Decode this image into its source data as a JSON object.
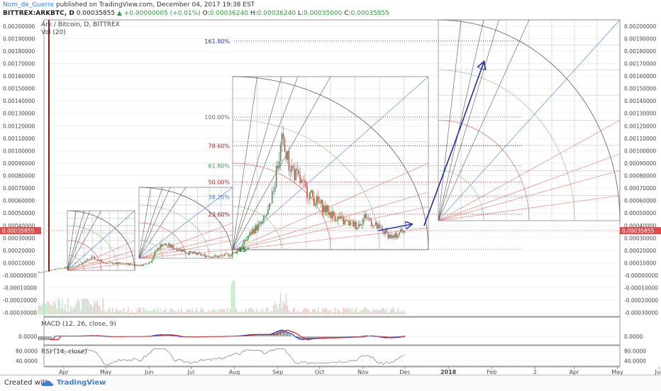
{
  "header": {
    "author": "Nom_de_Guerre",
    "published": "published on TradingView.com, December 04, 2017 19:38 EST",
    "symbol": "BITTREX:ARKBTC, D",
    "last": "0.00035855",
    "change": "+0.00000005 (+0.01%)",
    "o_label": "O:",
    "o": "0.00036240",
    "h_label": "H:",
    "h": "0.00036240",
    "l_label": "L:",
    "l": "0.00035000",
    "c_label": "C:",
    "c": "0.00035855"
  },
  "panes": {
    "main_title": "Ark / Bitcoin, D, BITTREX",
    "vol_title": "Vol (20)",
    "macd_title": "MACD (12, 26, close, 9)",
    "rsi_title": "RSI (14, close)"
  },
  "footer": {
    "created_with": "Created with",
    "brand": "TradingView"
  },
  "colors": {
    "up": "#3c9a4b",
    "down": "#e04a4a",
    "arrow": "#1e2aa8",
    "macd": "#2040d0",
    "signal": "#d02020"
  },
  "chart_data": {
    "type": "candlestick",
    "price_axis_labels": [
      "0.00200000",
      "0.00190000",
      "0.00180000",
      "0.00170000",
      "0.00160000",
      "0.00150000",
      "0.00140000",
      "0.00130000",
      "0.00120000",
      "0.00110000",
      "0.00100000",
      "0.00090000",
      "0.00080000",
      "0.00070000",
      "0.00060000",
      "0.00050000",
      "0.00040000",
      "0.00030000",
      "0.00020000",
      "0.00010000",
      "-0.00000000",
      "-0.00010000",
      "-0.00020000",
      "-0.00030000"
    ],
    "price_axis_values": [
      0.002,
      0.0019,
      0.0018,
      0.0017,
      0.0016,
      0.0015,
      0.0014,
      0.0013,
      0.0012,
      0.0011,
      0.001,
      0.0009,
      0.0008,
      0.0007,
      0.0006,
      0.0005,
      0.0004,
      0.0003,
      0.0002,
      0.0001,
      0,
      -0.0001,
      -0.0002,
      -0.0003
    ],
    "current_price_label": "0.00035855",
    "current_price": 0.00035855,
    "macd_axis_label": "0.0000",
    "rsi_axis_labels": [
      "80.0000",
      "40.0000"
    ],
    "rsi_axis_values": [
      80,
      40
    ],
    "time_labels": [
      "Apr",
      "May",
      "Jun",
      "Jul",
      "Aug",
      "Sep",
      "Oct",
      "Nov",
      "Dec",
      "2018",
      "Feb",
      "2",
      "Apr",
      "May",
      "Jun"
    ],
    "time_label_days": [
      0,
      30,
      61,
      91,
      122,
      153,
      183,
      214,
      244,
      275,
      306,
      337,
      365,
      396,
      426
    ],
    "price_path": [
      [
        -20,
        3e-05
      ],
      [
        -18,
        2e-05
      ],
      [
        -10,
        4e-05
      ],
      [
        0,
        6e-05
      ],
      [
        10,
        8e-05
      ],
      [
        20,
        0.00014
      ],
      [
        30,
        0.0001
      ],
      [
        45,
        9e-05
      ],
      [
        55,
        8e-05
      ],
      [
        62,
        0.00011
      ],
      [
        66,
        0.0002
      ],
      [
        70,
        0.00025
      ],
      [
        80,
        0.00022
      ],
      [
        90,
        0.00018
      ],
      [
        100,
        0.00016
      ],
      [
        110,
        0.00015
      ],
      [
        120,
        0.00017
      ],
      [
        126,
        0.00021
      ],
      [
        130,
        0.00028
      ],
      [
        135,
        0.00036
      ],
      [
        142,
        0.00042
      ],
      [
        148,
        0.00055
      ],
      [
        152,
        0.00085
      ],
      [
        156,
        0.00106
      ],
      [
        160,
        0.00092
      ],
      [
        166,
        0.0008
      ],
      [
        172,
        0.0007
      ],
      [
        180,
        0.0006
      ],
      [
        190,
        0.0005
      ],
      [
        200,
        0.00043
      ],
      [
        210,
        0.0004
      ],
      [
        216,
        0.00048
      ],
      [
        222,
        0.0004
      ],
      [
        230,
        0.00034
      ],
      [
        236,
        0.0003
      ],
      [
        240,
        0.00035
      ],
      [
        244,
        0.00036
      ]
    ],
    "fib_levels": [
      {
        "label": "161.80%",
        "value": 0.00188,
        "color": "#2233aa"
      },
      {
        "label": "100.00%",
        "value": 0.00127,
        "color": "#666666"
      },
      {
        "label": "78.60%",
        "value": 0.00104,
        "color": "#b01818"
      },
      {
        "label": "61.80%",
        "value": 0.00088,
        "color": "#3c9a4b"
      },
      {
        "label": "50.00%",
        "value": 0.00075,
        "color": "#b01818"
      },
      {
        "label": "38.20%",
        "value": 0.00063,
        "color": "#3b7ddd"
      },
      {
        "label": "23.60%",
        "value": 0.00049,
        "color": "#b01818"
      }
    ],
    "fib_base": 0.00021,
    "angle_label": "45°"
  }
}
